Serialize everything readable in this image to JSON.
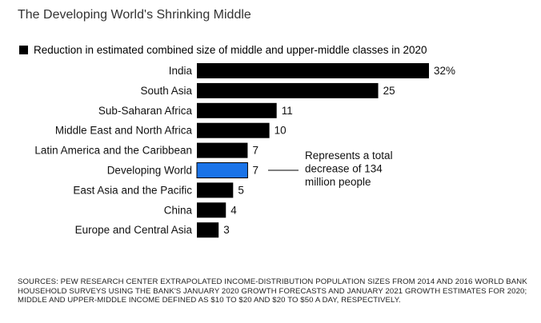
{
  "title": "The Developing World's Shrinking Middle",
  "legend": {
    "label": "Reduction in estimated combined size of middle and upper-middle classes in 2020",
    "color": "#000000"
  },
  "annotation": {
    "lines": [
      "Represents a total",
      "decrease of 134",
      "million people"
    ]
  },
  "sources": "SOURCES: PEW RESEARCH CENTER EXTRAPOLATED INCOME-DISTRIBUTION POPULATION SIZES FROM 2014 AND 2016 WORLD BANK HOUSEHOLD SURVEYS USING THE BANK'S JANUARY 2020 GROWTH FORECASTS AND JANUARY 2021 GROWTH ESTIMATES FOR 2020; MIDDLE AND UPPER-MIDDLE INCOME DEFINED AS $10 TO $20 AND $20 TO $50 A DAY, RESPECTIVELY.",
  "chart_data": {
    "type": "bar",
    "orientation": "horizontal",
    "title": "The Developing World's Shrinking Middle",
    "categories": [
      "India",
      "South Asia",
      "Sub-Saharan Africa",
      "Middle East and North Africa",
      "Latin America and the Caribbean",
      "Developing World",
      "East Asia and the Pacific",
      "China",
      "Europe and Central Asia"
    ],
    "series": [
      {
        "name": "Reduction in estimated combined size of middle and upper-middle classes in 2020",
        "values": [
          32,
          25,
          11,
          10,
          7,
          7,
          5,
          4,
          3
        ]
      }
    ],
    "value_labels": [
      "32%",
      "25",
      "11",
      "10",
      "7",
      "7",
      "5",
      "4",
      "3"
    ],
    "highlight": {
      "category": "Developing World",
      "color": "#1a73e8"
    },
    "bar_color": "#000000",
    "xlim": [
      0,
      32
    ],
    "grid": false
  }
}
